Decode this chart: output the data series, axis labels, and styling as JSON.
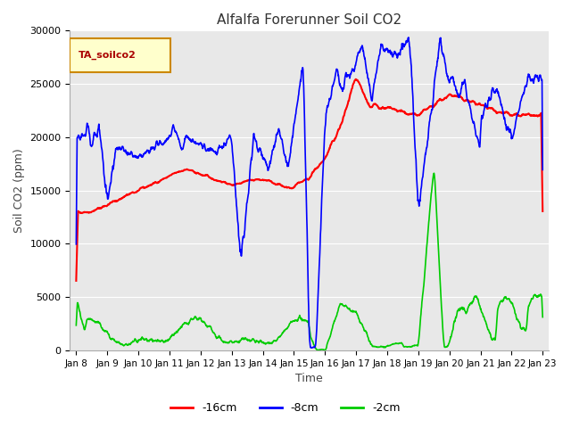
{
  "title": "Alfalfa Forerunner Soil CO2",
  "xlabel": "Time",
  "ylabel": "Soil CO2 (ppm)",
  "legend_label": "TA_soilco2",
  "series_labels": [
    "-16cm",
    "-8cm",
    "-2cm"
  ],
  "series_colors": [
    "#ff0000",
    "#0000ff",
    "#00cc00"
  ],
  "ylim": [
    0,
    30000
  ],
  "yticks": [
    0,
    5000,
    10000,
    15000,
    20000,
    25000,
    30000
  ],
  "x_tick_labels": [
    "Jan 8",
    "Jan 9",
    "Jan 10",
    "Jan 11",
    "Jan 12",
    "Jan 13",
    "Jan 14",
    "Jan 15",
    "Jan 16",
    "Jan 17",
    "Jan 18",
    "Jan 19",
    "Jan 20",
    "Jan 21",
    "Jan 22",
    "Jan 23"
  ],
  "background_color": "#e8e8e8",
  "fig_background": "#ffffff",
  "title_color": "#333333",
  "label_color": "#444444",
  "legend_box_color": "#ffffcc",
  "legend_box_edge": "#cc8800"
}
